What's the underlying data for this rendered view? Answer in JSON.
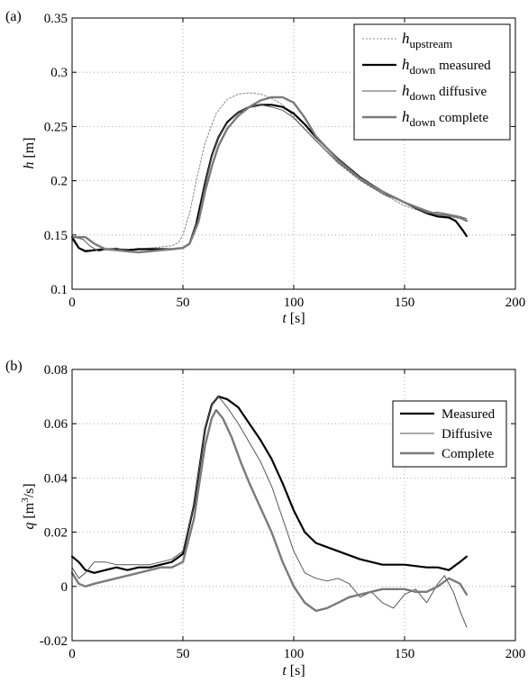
{
  "chart_data": [
    {
      "type": "line",
      "panel_label": "(a)",
      "xlabel": "t [s]",
      "xlabel_var": "t",
      "xlabel_unit": " [s]",
      "ylabel": "h [m]",
      "ylabel_var": "h",
      "ylabel_unit": " [m]",
      "xlim": [
        0,
        200
      ],
      "ylim": [
        0.1,
        0.35
      ],
      "xticks": [
        "0",
        "50",
        "100",
        "150",
        "200"
      ],
      "yticks": [
        "0.1",
        "0.15",
        "0.2",
        "0.25",
        "0.3",
        "0.35"
      ],
      "grid": true,
      "legend_position": "top-right",
      "series": [
        {
          "legend_main": "h",
          "legend_sub": "upstream",
          "legend_rest": "",
          "color": "#888888",
          "width": 1,
          "dash": "2,2",
          "x": [
            0,
            3,
            6,
            10,
            15,
            20,
            30,
            40,
            45,
            48,
            50,
            53,
            56,
            60,
            65,
            70,
            75,
            80,
            85,
            90,
            95,
            100,
            110,
            120,
            130,
            140,
            150,
            160,
            165,
            170,
            175,
            178
          ],
          "y": [
            0.145,
            0.138,
            0.136,
            0.136,
            0.137,
            0.137,
            0.137,
            0.139,
            0.14,
            0.143,
            0.15,
            0.17,
            0.2,
            0.235,
            0.262,
            0.275,
            0.28,
            0.281,
            0.28,
            0.276,
            0.27,
            0.259,
            0.237,
            0.216,
            0.2,
            0.188,
            0.177,
            0.17,
            0.167,
            0.167,
            0.165,
            0.163
          ]
        },
        {
          "legend_main": "h",
          "legend_sub": "down",
          "legend_rest": " measured",
          "color": "#000000",
          "width": 2.2,
          "dash": "",
          "x": [
            0,
            3,
            6,
            10,
            15,
            20,
            25,
            30,
            35,
            40,
            45,
            50,
            53,
            56,
            60,
            63,
            66,
            70,
            75,
            80,
            85,
            90,
            95,
            100,
            105,
            110,
            120,
            130,
            140,
            150,
            160,
            165,
            170,
            173,
            176,
            178
          ],
          "y": [
            0.148,
            0.138,
            0.135,
            0.136,
            0.137,
            0.137,
            0.136,
            0.137,
            0.137,
            0.137,
            0.137,
            0.138,
            0.142,
            0.16,
            0.198,
            0.223,
            0.24,
            0.254,
            0.263,
            0.268,
            0.27,
            0.27,
            0.268,
            0.262,
            0.252,
            0.24,
            0.22,
            0.203,
            0.19,
            0.18,
            0.17,
            0.167,
            0.166,
            0.163,
            0.155,
            0.149
          ]
        },
        {
          "legend_main": "h",
          "legend_sub": "down",
          "legend_rest": " diffusive",
          "color": "#555555",
          "width": 1,
          "dash": "",
          "x": [
            0,
            3,
            5,
            8,
            12,
            16,
            20,
            25,
            30,
            40,
            45,
            50,
            53,
            57,
            60,
            63,
            66,
            70,
            75,
            80,
            85,
            90,
            95,
            100,
            110,
            120,
            130,
            140,
            150,
            160,
            165,
            170,
            175,
            178
          ],
          "y": [
            0.148,
            0.147,
            0.146,
            0.14,
            0.135,
            0.137,
            0.138,
            0.135,
            0.134,
            0.136,
            0.137,
            0.138,
            0.142,
            0.165,
            0.197,
            0.222,
            0.24,
            0.253,
            0.263,
            0.268,
            0.27,
            0.268,
            0.265,
            0.258,
            0.237,
            0.217,
            0.201,
            0.188,
            0.18,
            0.17,
            0.171,
            0.169,
            0.167,
            0.165
          ]
        },
        {
          "legend_main": "h",
          "legend_sub": "down",
          "legend_rest": " complete",
          "color": "#7a7a7a",
          "width": 2.4,
          "dash": "",
          "x": [
            0,
            3,
            6,
            10,
            15,
            20,
            25,
            30,
            35,
            40,
            45,
            50,
            53,
            57,
            60,
            63,
            66,
            70,
            75,
            80,
            85,
            90,
            95,
            100,
            105,
            110,
            120,
            130,
            140,
            150,
            160,
            165,
            170,
            175,
            178
          ],
          "y": [
            0.148,
            0.148,
            0.148,
            0.142,
            0.137,
            0.136,
            0.135,
            0.134,
            0.135,
            0.136,
            0.137,
            0.138,
            0.142,
            0.162,
            0.19,
            0.213,
            0.232,
            0.248,
            0.26,
            0.268,
            0.274,
            0.277,
            0.277,
            0.272,
            0.258,
            0.241,
            0.219,
            0.202,
            0.19,
            0.18,
            0.172,
            0.169,
            0.168,
            0.166,
            0.163
          ]
        }
      ]
    },
    {
      "type": "line",
      "panel_label": "(b)",
      "xlabel": "t [s]",
      "xlabel_var": "t",
      "xlabel_unit": " [s]",
      "ylabel": "q [m3/s]",
      "ylabel_var": "q",
      "ylabel_unit_pre": " [m",
      "ylabel_unit_sup": "3",
      "ylabel_unit_post": "/s]",
      "xlim": [
        0,
        200
      ],
      "ylim": [
        -0.02,
        0.08
      ],
      "xticks": [
        "0",
        "50",
        "100",
        "150",
        "200"
      ],
      "yticks": [
        "-0.02",
        "0",
        "0.02",
        "0.04",
        "0.06",
        "0.08"
      ],
      "grid": true,
      "legend_position": "top-right",
      "series": [
        {
          "legend_main": "Measured",
          "color": "#000000",
          "width": 2.2,
          "dash": "",
          "x": [
            0,
            3,
            6,
            10,
            15,
            20,
            25,
            30,
            35,
            40,
            45,
            50,
            55,
            60,
            63,
            66,
            70,
            75,
            80,
            85,
            90,
            95,
            100,
            105,
            110,
            120,
            130,
            140,
            150,
            160,
            165,
            170,
            175,
            178
          ],
          "y": [
            0.011,
            0.009,
            0.006,
            0.005,
            0.006,
            0.007,
            0.006,
            0.007,
            0.007,
            0.008,
            0.009,
            0.012,
            0.03,
            0.058,
            0.067,
            0.07,
            0.069,
            0.066,
            0.06,
            0.054,
            0.047,
            0.038,
            0.028,
            0.02,
            0.016,
            0.013,
            0.01,
            0.008,
            0.008,
            0.007,
            0.007,
            0.006,
            0.009,
            0.011
          ]
        },
        {
          "legend_main": "Diffusive",
          "color": "#555555",
          "width": 1,
          "dash": "",
          "x": [
            0,
            3,
            6,
            10,
            15,
            20,
            25,
            30,
            35,
            40,
            45,
            50,
            55,
            60,
            63,
            66,
            70,
            75,
            80,
            85,
            90,
            95,
            100,
            105,
            110,
            115,
            120,
            125,
            130,
            135,
            140,
            145,
            150,
            155,
            160,
            165,
            168,
            172,
            175,
            178
          ],
          "y": [
            0.007,
            0.003,
            0.005,
            0.009,
            0.009,
            0.008,
            0.008,
            0.008,
            0.008,
            0.009,
            0.01,
            0.013,
            0.03,
            0.058,
            0.067,
            0.07,
            0.066,
            0.06,
            0.053,
            0.046,
            0.037,
            0.025,
            0.013,
            0.005,
            0.003,
            0.002,
            0.003,
            0.001,
            -0.004,
            -0.002,
            -0.006,
            -0.008,
            -0.003,
            -0.001,
            -0.006,
            0.001,
            0.004,
            -0.002,
            -0.009,
            -0.015
          ]
        },
        {
          "legend_main": "Complete",
          "color": "#7a7a7a",
          "width": 2.4,
          "dash": "",
          "x": [
            0,
            3,
            6,
            10,
            15,
            20,
            25,
            30,
            35,
            40,
            45,
            50,
            55,
            60,
            63,
            65,
            68,
            72,
            76,
            80,
            85,
            90,
            95,
            100,
            105,
            110,
            115,
            120,
            125,
            130,
            135,
            140,
            145,
            150,
            155,
            160,
            165,
            170,
            175,
            178
          ],
          "y": [
            0.005,
            0.001,
            0.0,
            0.001,
            0.002,
            0.003,
            0.004,
            0.005,
            0.006,
            0.007,
            0.007,
            0.009,
            0.025,
            0.052,
            0.062,
            0.065,
            0.062,
            0.055,
            0.046,
            0.038,
            0.029,
            0.02,
            0.009,
            0.0,
            -0.006,
            -0.009,
            -0.008,
            -0.006,
            -0.004,
            -0.003,
            -0.002,
            -0.001,
            -0.001,
            -0.001,
            -0.002,
            -0.002,
            0.0,
            0.003,
            0.001,
            -0.003
          ]
        }
      ]
    }
  ]
}
